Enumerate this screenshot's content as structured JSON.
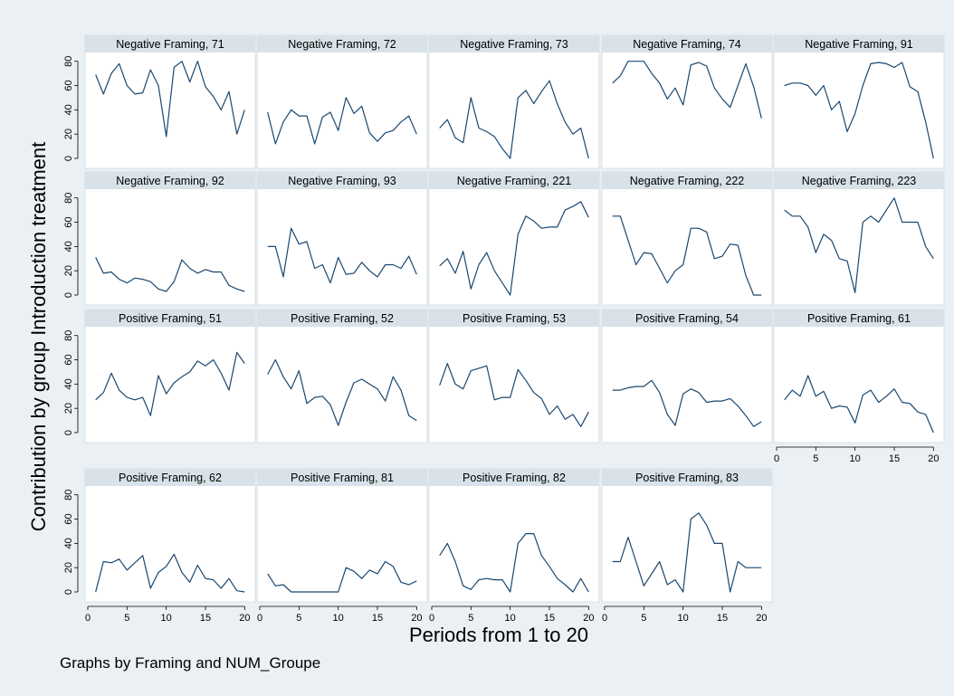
{
  "chart_data": {
    "type": "line",
    "ylabel": "Contribution by group Introduction treatment",
    "xlabel": "Periods from 1 to 20",
    "note": "Graphs by Framing and NUM_Groupe",
    "xlim": [
      0,
      21
    ],
    "ylim": [
      0,
      85
    ],
    "xticks": [
      0,
      5,
      10,
      15,
      20
    ],
    "yticks": [
      0,
      20,
      40,
      60,
      80
    ],
    "grid": false,
    "x": [
      1,
      2,
      3,
      4,
      5,
      6,
      7,
      8,
      9,
      10,
      11,
      12,
      13,
      14,
      15,
      16,
      17,
      18,
      19,
      20
    ],
    "panels": [
      {
        "title": "Negative Framing, 71",
        "values": [
          69,
          53,
          70,
          78,
          60,
          53,
          54,
          73,
          60,
          18,
          75,
          80,
          63,
          80,
          59,
          51,
          40,
          55,
          20,
          40
        ]
      },
      {
        "title": "Negative Framing, 72",
        "values": [
          38,
          12,
          30,
          40,
          35,
          35,
          12,
          34,
          38,
          23,
          50,
          37,
          43,
          21,
          14,
          21,
          23,
          30,
          35,
          20
        ]
      },
      {
        "title": "Negative Framing, 73",
        "values": [
          25,
          32,
          17,
          13,
          50,
          25,
          22,
          18,
          8,
          0,
          50,
          56,
          45,
          55,
          64,
          45,
          30,
          20,
          25,
          0
        ]
      },
      {
        "title": "Negative Framing, 74",
        "values": [
          62,
          68,
          80,
          80,
          80,
          70,
          62,
          49,
          58,
          44,
          77,
          79,
          76,
          58,
          49,
          42,
          60,
          78,
          59,
          33
        ]
      },
      {
        "title": "Negative Framing, 91",
        "values": [
          60,
          62,
          62,
          60,
          52,
          60,
          40,
          47,
          22,
          37,
          60,
          78,
          79,
          78,
          75,
          79,
          59,
          55,
          30,
          0
        ]
      },
      {
        "title": "Negative Framing, 92",
        "values": [
          31,
          18,
          19,
          13,
          10,
          14,
          13,
          11,
          5,
          3,
          11,
          29,
          22,
          18,
          21,
          19,
          19,
          8,
          5,
          3
        ]
      },
      {
        "title": "Negative Framing, 93",
        "values": [
          40,
          40,
          15,
          55,
          42,
          44,
          22,
          25,
          10,
          31,
          17,
          18,
          27,
          20,
          15,
          25,
          25,
          22,
          32,
          17
        ]
      },
      {
        "title": "Negative Framing, 221",
        "values": [
          24,
          30,
          18,
          36,
          5,
          25,
          35,
          20,
          10,
          0,
          50,
          65,
          61,
          55,
          56,
          56,
          70,
          73,
          77,
          64
        ]
      },
      {
        "title": "Negative Framing, 222",
        "values": [
          65,
          65,
          45,
          25,
          35,
          34,
          22,
          10,
          20,
          25,
          55,
          55,
          52,
          30,
          32,
          42,
          41,
          16,
          0,
          0
        ]
      },
      {
        "title": "Negative Framing, 223",
        "values": [
          70,
          65,
          65,
          56,
          35,
          50,
          45,
          30,
          28,
          2,
          60,
          65,
          60,
          70,
          80,
          60,
          60,
          60,
          40,
          30
        ]
      },
      {
        "title": "Positive Framing, 51",
        "values": [
          27,
          33,
          49,
          35,
          29,
          27,
          29,
          14,
          47,
          32,
          41,
          46,
          50,
          59,
          55,
          60,
          49,
          35,
          66,
          57
        ]
      },
      {
        "title": "Positive Framing, 52",
        "values": [
          48,
          60,
          46,
          36,
          51,
          24,
          29,
          30,
          23,
          6,
          25,
          41,
          44,
          40,
          36,
          26,
          46,
          35,
          14,
          10
        ]
      },
      {
        "title": "Positive Framing, 53",
        "values": [
          39,
          57,
          40,
          36,
          51,
          53,
          55,
          27,
          29,
          29,
          52,
          43,
          33,
          28,
          15,
          22,
          11,
          15,
          5,
          17
        ]
      },
      {
        "title": "Positive Framing, 54",
        "values": [
          35,
          35,
          37,
          38,
          38,
          43,
          33,
          15,
          6,
          32,
          36,
          33,
          25,
          26,
          26,
          28,
          22,
          14,
          5,
          9
        ]
      },
      {
        "title": "Positive Framing, 61",
        "values": [
          27,
          35,
          30,
          47,
          30,
          34,
          20,
          22,
          21,
          8,
          31,
          35,
          25,
          30,
          36,
          25,
          24,
          17,
          15,
          0
        ]
      },
      {
        "title": "Positive Framing, 62",
        "values": [
          0,
          25,
          24,
          27,
          18,
          24,
          30,
          3,
          16,
          21,
          31,
          16,
          8,
          22,
          11,
          10,
          3,
          11,
          1,
          0
        ]
      },
      {
        "title": "Positive Framing, 81",
        "values": [
          15,
          5,
          6,
          0,
          0,
          0,
          0,
          0,
          0,
          0,
          20,
          17,
          11,
          18,
          15,
          25,
          21,
          8,
          6,
          9
        ]
      },
      {
        "title": "Positive Framing, 82",
        "values": [
          30,
          40,
          25,
          5,
          2,
          10,
          11,
          10,
          10,
          0,
          40,
          48,
          48,
          30,
          21,
          11,
          6,
          0,
          11,
          0
        ]
      },
      {
        "title": "Positive Framing, 83",
        "values": [
          25,
          25,
          45,
          25,
          5,
          15,
          25,
          6,
          10,
          0,
          60,
          65,
          55,
          40,
          40,
          0,
          25,
          20,
          20,
          20
        ]
      }
    ]
  }
}
